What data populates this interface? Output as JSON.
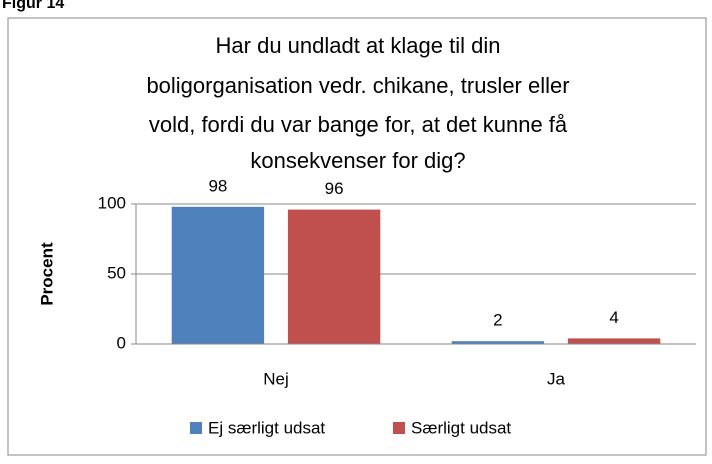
{
  "figure_label": "Figur 14",
  "chart_data": {
    "type": "bar",
    "title": [
      "Har du undladt at klage til din",
      "boligorganisation vedr. chikane, trusler eller",
      "vold, fordi du var bange for, at det kunne få",
      "konsekvenser for dig?"
    ],
    "ylabel": "Procent",
    "categories": [
      "Nej",
      "Ja"
    ],
    "series": [
      {
        "name": "Ej særligt udsat",
        "color": "#4f81bd",
        "values": [
          98,
          2
        ]
      },
      {
        "name": "Særligt udsat",
        "color": "#c0504d",
        "values": [
          96,
          4
        ]
      }
    ],
    "ylim": [
      0,
      100
    ],
    "yticks": [
      0,
      50,
      100
    ],
    "grid": true,
    "legend": "bottom"
  }
}
